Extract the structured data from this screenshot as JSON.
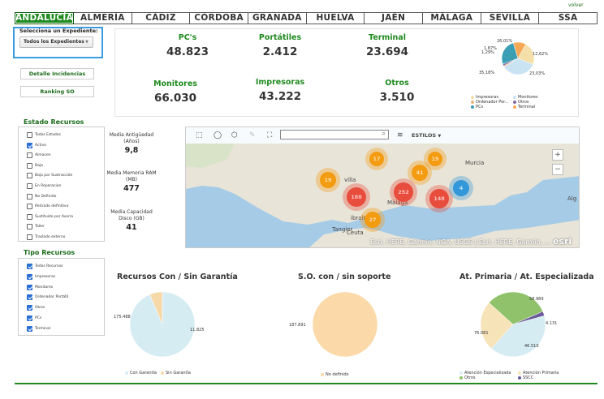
{
  "header": {
    "volver": "volver",
    "tabs": [
      "ANDALUCÍA",
      "ALMERÍA",
      "CÁDIZ",
      "CÓRDOBA",
      "GRANADA",
      "HUELVA",
      "JAÉN",
      "MÁLAGA",
      "SEVILLA",
      "SSA"
    ],
    "active_tab": "ANDALUCÍA"
  },
  "sidebar": {
    "expediente_label": "Selecciona un Expediente:",
    "expediente_value": "Todos los Expedientes",
    "detalle_button": "Detalle Incidencias",
    "ranking_button": "Ranking SO",
    "estado_title": "Estado Recursos",
    "estado_items": [
      {
        "label": "Todos Estados",
        "checked": false
      },
      {
        "label": "Activo",
        "checked": true
      },
      {
        "label": "Almacen",
        "checked": false
      },
      {
        "label": "Baja",
        "checked": false
      },
      {
        "label": "Baja por Sustracción",
        "checked": false
      },
      {
        "label": "En Reparacion",
        "checked": false
      },
      {
        "label": "No Definido",
        "checked": false
      },
      {
        "label": "Retirado definitivo",
        "checked": false
      },
      {
        "label": "Sustituido por Avería",
        "checked": false
      },
      {
        "label": "Taller",
        "checked": false
      },
      {
        "label": "Traslado externo",
        "checked": false
      }
    ],
    "tipo_title": "Tipo Recursos",
    "tipo_items": [
      {
        "label": "Todos Recursos",
        "checked": true
      },
      {
        "label": "Impresoras",
        "checked": true
      },
      {
        "label": "Monitores",
        "checked": true
      },
      {
        "label": "Ordenador Portátil",
        "checked": true
      },
      {
        "label": "Otros",
        "checked": true
      },
      {
        "label": "PCs",
        "checked": true
      },
      {
        "label": "Terminal",
        "checked": true
      }
    ]
  },
  "kpis": [
    {
      "title": "PC's",
      "value": "48.823"
    },
    {
      "title": "Portátiles",
      "value": "2.412"
    },
    {
      "title": "Terminal",
      "value": "23.694"
    },
    {
      "title": "Monitores",
      "value": "66.030"
    },
    {
      "title": "Impresoras",
      "value": "43.222"
    },
    {
      "title": "Otros",
      "value": "3.510"
    }
  ],
  "averages": [
    {
      "title": "Media Antigüedad (Años)",
      "value": "9,8"
    },
    {
      "title": "Media Memoria RAM (MB)",
      "value": "477"
    },
    {
      "title": "Media Capacidad Disco (GB)",
      "value": "41"
    }
  ],
  "map": {
    "search_placeholder": "",
    "estilos_label": "ESTILOS",
    "zoom_in": "+",
    "zoom_out": "−",
    "attribution": "Esri, HERE, Garmin, NGA, USGS | Esri, HERE, Garmin, ...",
    "logo": "esri",
    "places": [
      {
        "name": "Murcia"
      },
      {
        "name": "Málaga"
      },
      {
        "name": "Tangier"
      },
      {
        "name": "Ceuta"
      },
      {
        "name": "ibraltar"
      },
      {
        "name": "villa"
      },
      {
        "name": "Alg"
      }
    ],
    "clusters": [
      {
        "count": "17",
        "color": "#f39c12"
      },
      {
        "count": "19",
        "color": "#f39c12"
      },
      {
        "count": "19",
        "color": "#f39c12"
      },
      {
        "count": "41",
        "color": "#f39c12"
      },
      {
        "count": "188",
        "color": "#e74c3c"
      },
      {
        "count": "252",
        "color": "#e74c3c"
      },
      {
        "count": "148",
        "color": "#e74c3c"
      },
      {
        "count": "4",
        "color": "#3498db"
      },
      {
        "count": "27",
        "color": "#f39c12"
      }
    ]
  },
  "chart_data": [
    {
      "type": "pie",
      "title": "",
      "labels": [
        "Impresoras",
        "Monitores",
        "Ordenador Por...",
        "Otros",
        "PCs",
        "Terminal"
      ],
      "values": [
        23.03,
        35.18,
        1.29,
        1.87,
        26.01,
        12.62
      ],
      "value_labels": [
        "23,03%",
        "35,18%",
        "1,29%",
        "1,87%",
        "26,01%",
        "12,62%"
      ],
      "colors": [
        "#f5dfa8",
        "#c9e3f2",
        "#f5b37a",
        "#7d6aa8",
        "#3a9fb5",
        "#f5a855"
      ],
      "legend": "bottom"
    },
    {
      "type": "pie",
      "title": "Recursos Con / Sin Garantía",
      "labels": [
        "Con Garantía",
        "Sin Garantía"
      ],
      "values": [
        175488,
        11825
      ],
      "value_labels": [
        "175.488",
        "11.825"
      ],
      "colors": [
        "#d6ecf3",
        "#f7d8a8"
      ],
      "legend": "bottom"
    },
    {
      "type": "pie",
      "title": "S.O. con / sin soporte",
      "labels": [
        "No definido"
      ],
      "values": [
        187891
      ],
      "value_labels": [
        "187.891"
      ],
      "colors": [
        "#fbd9a8"
      ],
      "legend": "bottom"
    },
    {
      "type": "pie",
      "title": "At. Primaria / At. Especializada",
      "labels": [
        "Atención Especializada",
        "Atención Primaria",
        "Otros",
        "SSCC"
      ],
      "values": [
        76081,
        46510,
        58989,
        4131
      ],
      "value_labels": [
        "76.081",
        "46.510",
        "58.989",
        "4.131"
      ],
      "colors": [
        "#d6ecf3",
        "#f6e3b8",
        "#8fc26a",
        "#6b5b9a"
      ],
      "legend": "bottom"
    }
  ]
}
